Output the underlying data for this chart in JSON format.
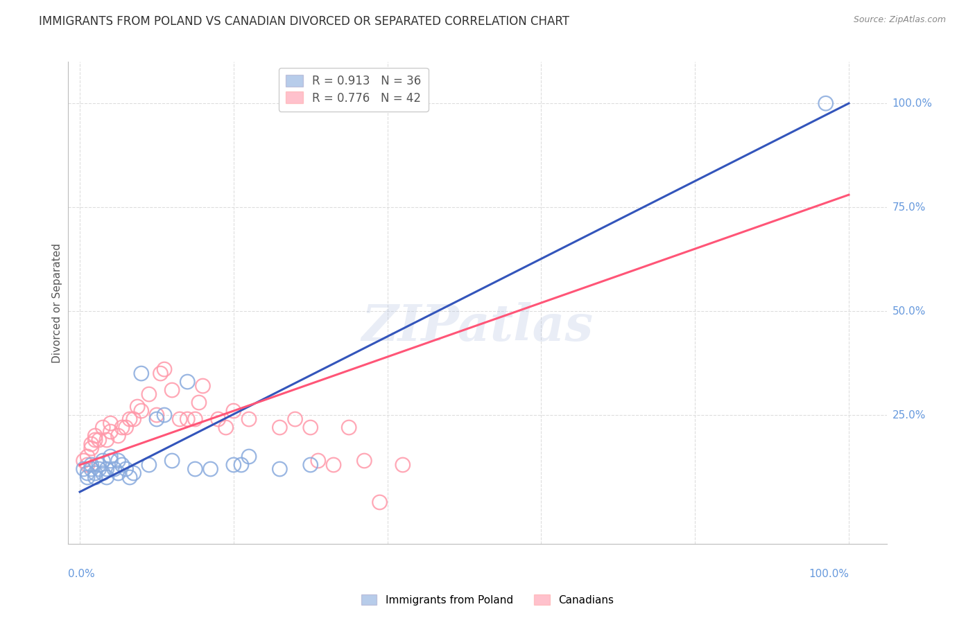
{
  "title": "IMMIGRANTS FROM POLAND VS CANADIAN DIVORCED OR SEPARATED CORRELATION CHART",
  "source": "Source: ZipAtlas.com",
  "ylabel": "Divorced or Separated",
  "ytick_labels": [
    "25.0%",
    "50.0%",
    "75.0%",
    "100.0%"
  ],
  "ytick_values": [
    0.25,
    0.5,
    0.75,
    1.0
  ],
  "xtick_values": [
    0.0,
    0.2,
    0.4,
    0.6,
    0.8,
    1.0
  ],
  "legend1_R": "0.913",
  "legend1_N": "36",
  "legend2_R": "0.776",
  "legend2_N": "42",
  "blue_color": "#88AADD",
  "pink_color": "#FF99AA",
  "blue_line_color": "#3355BB",
  "pink_line_color": "#FF5577",
  "watermark_text": "ZIPatlas",
  "blue_scatter_x": [
    0.005,
    0.01,
    0.01,
    0.015,
    0.015,
    0.02,
    0.02,
    0.025,
    0.025,
    0.03,
    0.03,
    0.035,
    0.035,
    0.04,
    0.04,
    0.045,
    0.05,
    0.05,
    0.055,
    0.06,
    0.065,
    0.07,
    0.08,
    0.09,
    0.1,
    0.11,
    0.12,
    0.14,
    0.15,
    0.17,
    0.2,
    0.21,
    0.22,
    0.26,
    0.3,
    0.97
  ],
  "blue_scatter_y": [
    0.12,
    0.1,
    0.11,
    0.12,
    0.13,
    0.1,
    0.11,
    0.13,
    0.12,
    0.11,
    0.14,
    0.1,
    0.12,
    0.15,
    0.14,
    0.12,
    0.11,
    0.14,
    0.13,
    0.12,
    0.1,
    0.11,
    0.35,
    0.13,
    0.24,
    0.25,
    0.14,
    0.33,
    0.12,
    0.12,
    0.13,
    0.13,
    0.15,
    0.12,
    0.13,
    1.0
  ],
  "pink_scatter_x": [
    0.005,
    0.01,
    0.01,
    0.015,
    0.015,
    0.02,
    0.02,
    0.025,
    0.03,
    0.035,
    0.04,
    0.04,
    0.05,
    0.055,
    0.06,
    0.065,
    0.07,
    0.075,
    0.08,
    0.09,
    0.1,
    0.105,
    0.11,
    0.12,
    0.13,
    0.14,
    0.15,
    0.155,
    0.16,
    0.18,
    0.19,
    0.2,
    0.22,
    0.26,
    0.28,
    0.3,
    0.31,
    0.33,
    0.35,
    0.37,
    0.39,
    0.42
  ],
  "pink_scatter_y": [
    0.14,
    0.13,
    0.15,
    0.17,
    0.18,
    0.19,
    0.2,
    0.19,
    0.22,
    0.19,
    0.21,
    0.23,
    0.2,
    0.22,
    0.22,
    0.24,
    0.24,
    0.27,
    0.26,
    0.3,
    0.25,
    0.35,
    0.36,
    0.31,
    0.24,
    0.24,
    0.24,
    0.28,
    0.32,
    0.24,
    0.22,
    0.26,
    0.24,
    0.22,
    0.24,
    0.22,
    0.14,
    0.13,
    0.22,
    0.14,
    0.04,
    0.13
  ],
  "blue_line_y_start": 0.065,
  "blue_line_y_end": 1.0,
  "pink_line_y_start": 0.13,
  "pink_line_y_end": 0.78,
  "background_color": "#FFFFFF",
  "grid_color": "#DDDDDD",
  "title_color": "#333333",
  "axis_label_color": "#6699DD",
  "ylim_min": -0.06,
  "ylim_max": 1.1,
  "xlim_min": -0.015,
  "xlim_max": 1.05
}
